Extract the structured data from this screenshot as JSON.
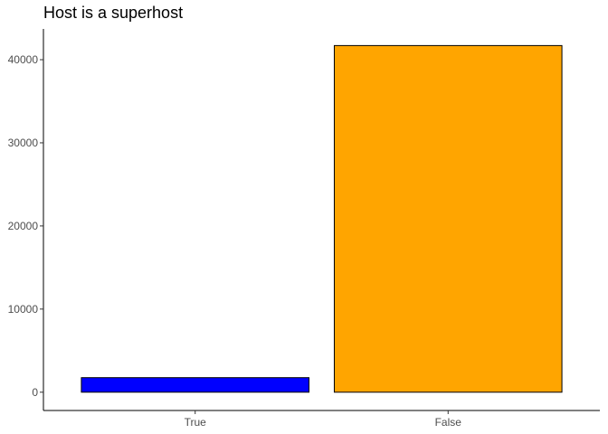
{
  "chart_data": {
    "type": "bar",
    "title": "Host is a superhost",
    "xlabel": "",
    "ylabel": "",
    "categories": [
      "True",
      "False"
    ],
    "values": [
      1750,
      41700
    ],
    "colors": [
      "#0000ff",
      "#ffa500"
    ],
    "bar_outline": "#000000",
    "ylim": [
      -2200,
      43700
    ],
    "yticks": [
      0,
      10000,
      20000,
      30000,
      40000
    ],
    "ytick_labels": [
      "0",
      "10000",
      "20000",
      "30000",
      "40000"
    ],
    "grid": false,
    "legend": "none"
  }
}
